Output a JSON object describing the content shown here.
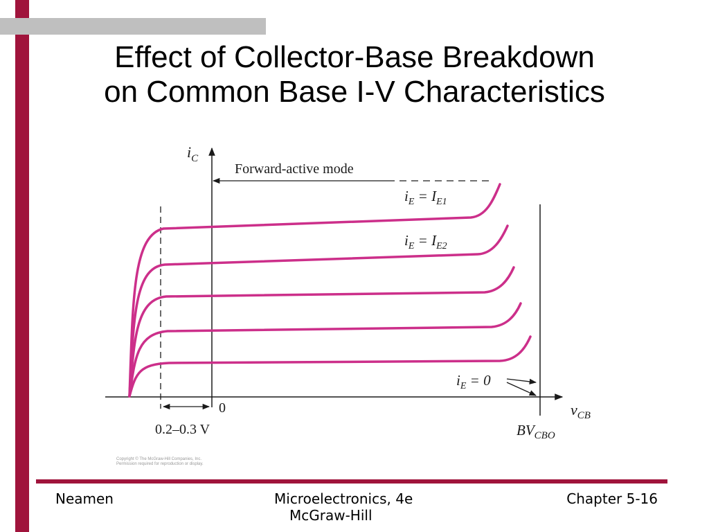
{
  "slide": {
    "title_line1": "Effect of Collector-Base Breakdown",
    "title_line2": "on Common Base I-V Characteristics",
    "copyright_line1": "Copyright © The McGraw-Hill Companies, Inc.",
    "copyright_line2": "Permission required for reproduction or display."
  },
  "figure": {
    "y_axis_label": "i",
    "y_axis_sub": "C",
    "x_axis_label": "v",
    "x_axis_sub": "CB",
    "forward_active_label": "Forward-active mode",
    "curve1_label": "i",
    "curve1_label_sub": "E",
    "curve1_label_eq": " = I",
    "curve1_label_eq_sub": "E1",
    "curve2_label": "i",
    "curve2_label_sub": "E",
    "curve2_label_eq": " = I",
    "curve2_label_eq_sub": "E2",
    "curve5_label": "i",
    "curve5_label_sub": "E",
    "curve5_label_eq": " = 0",
    "origin_label": "0",
    "offset_label": "0.2–0.3 V",
    "breakdown_label": "BV",
    "breakdown_sub": "CBO",
    "curve_color": "#cc2f8a"
  },
  "footer": {
    "author": "Neamen",
    "book": "Microelectronics, 4e",
    "publisher": "McGraw-Hill",
    "chapter": "Chapter 5-16"
  },
  "colors": {
    "accent": "#a0143c",
    "grey_bar": "#bfbfbf"
  }
}
